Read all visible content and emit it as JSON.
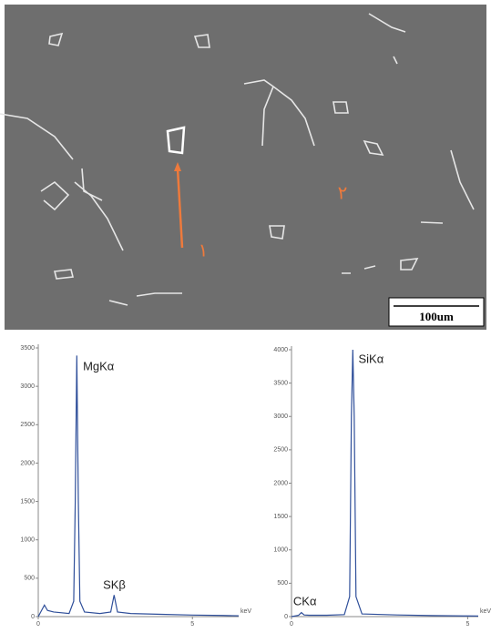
{
  "micrograph": {
    "scale_bar": "100um",
    "markers": [
      "١",
      "٢"
    ]
  },
  "chart_data": [
    {
      "type": "line",
      "x_unit": "keV",
      "x": [
        0,
        0.2,
        0.3,
        0.5,
        1.0,
        1.15,
        1.2,
        1.25,
        1.3,
        1.35,
        1.5,
        2.0,
        2.35,
        2.46,
        2.57,
        3,
        4,
        5,
        6,
        6.5
      ],
      "series": [
        {
          "color": "#2f4f9a",
          "values": [
            0,
            150,
            80,
            60,
            40,
            200,
            1500,
            3400,
            1500,
            200,
            60,
            40,
            60,
            280,
            60,
            40,
            30,
            20,
            15,
            10
          ]
        }
      ],
      "xlim": [
        0,
        6.5
      ],
      "xticks": [
        0,
        5
      ],
      "ylim": [
        0,
        3500
      ],
      "yticks": [
        0,
        500,
        1000,
        1500,
        2000,
        2500,
        3000,
        3500
      ],
      "annotations": [
        {
          "text": "MgKα",
          "x": 1.45,
          "y": 3250
        },
        {
          "text": "SKβ",
          "x": 2.1,
          "y": 400
        }
      ]
    },
    {
      "type": "line",
      "x_unit": "keV",
      "x": [
        0,
        0.2,
        0.28,
        0.36,
        0.5,
        1.0,
        1.5,
        1.65,
        1.7,
        1.74,
        1.78,
        1.83,
        2.0,
        3,
        4,
        5,
        5.3
      ],
      "series": [
        {
          "color": "#2f4f9a",
          "values": [
            0,
            20,
            60,
            25,
            20,
            20,
            30,
            300,
            3000,
            4000,
            3000,
            300,
            40,
            25,
            15,
            10,
            8
          ]
        }
      ],
      "xlim": [
        0,
        5.3
      ],
      "xticks": [
        0,
        5
      ],
      "ylim": [
        0,
        4000
      ],
      "yticks": [
        0,
        500,
        1000,
        1500,
        2000,
        2500,
        3000,
        3500,
        4000
      ],
      "annotations": [
        {
          "text": "SiKα",
          "x": 1.9,
          "y": 3850
        },
        {
          "text": "CKα",
          "x": 0.05,
          "y": 220
        }
      ]
    }
  ]
}
